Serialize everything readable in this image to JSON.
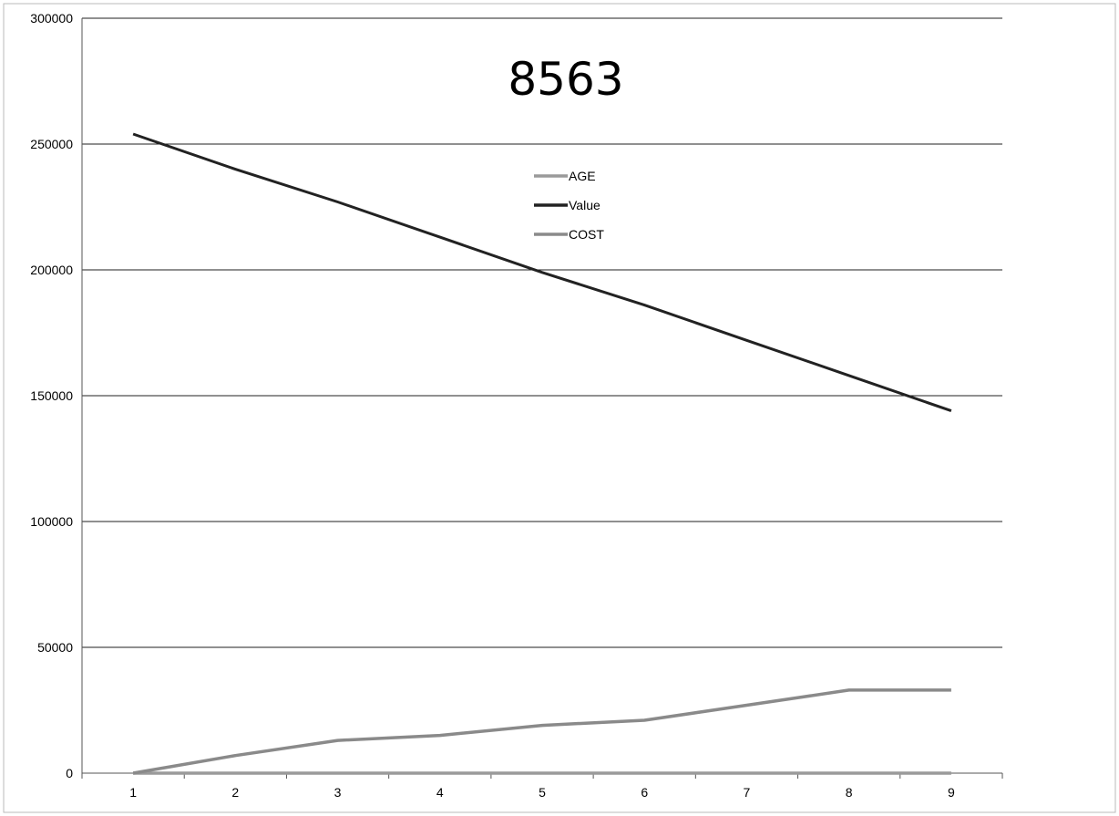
{
  "chart_data": {
    "type": "line",
    "title": "8563",
    "xlabel": "",
    "ylabel": "",
    "categories": [
      "1",
      "2",
      "3",
      "4",
      "5",
      "6",
      "7",
      "8",
      "9"
    ],
    "ylim": [
      0,
      300000
    ],
    "yticks": [
      "0",
      "50000",
      "100000",
      "150000",
      "200000",
      "250000",
      "300000"
    ],
    "grid": true,
    "legend_position": "top-center",
    "series": [
      {
        "name": "AGE",
        "color": "#9a9a9a",
        "values": [
          0,
          0,
          0,
          0,
          0,
          0,
          0,
          0,
          0
        ]
      },
      {
        "name": "Value",
        "color": "#222222",
        "values": [
          254000,
          240000,
          227000,
          213000,
          199000,
          186000,
          172000,
          158000,
          144000
        ]
      },
      {
        "name": "COST",
        "color": "#8a8a8a",
        "values": [
          0,
          7000,
          13000,
          15000,
          19000,
          21000,
          27000,
          33000,
          33000
        ]
      }
    ]
  }
}
